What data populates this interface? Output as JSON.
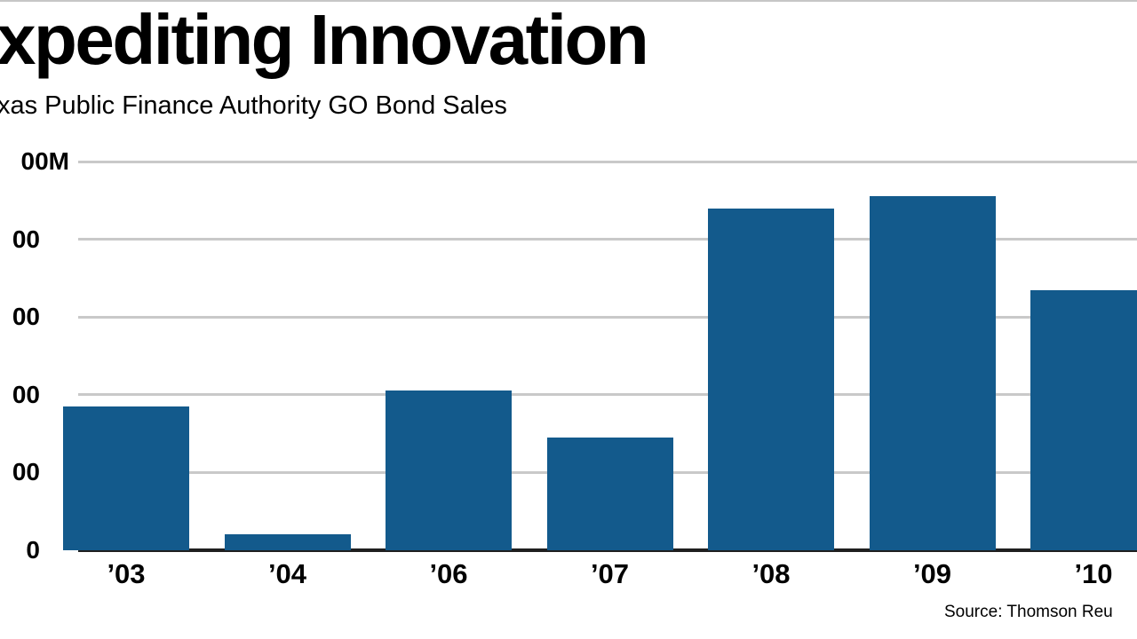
{
  "chart_data": {
    "type": "bar",
    "title": "xpediting Innovation",
    "subtitle": "xas Public Finance Authority GO Bond Sales",
    "categories": [
      "’03",
      "’04",
      "’06",
      "’07",
      "’08",
      "’09",
      "’10"
    ],
    "values": [
      185,
      20,
      205,
      145,
      440,
      455,
      335
    ],
    "ylim": [
      0,
      500
    ],
    "yticks": [
      {
        "value": 500,
        "label": "00M"
      },
      {
        "value": 400,
        "label": "00"
      },
      {
        "value": 300,
        "label": "00"
      },
      {
        "value": 200,
        "label": "00"
      },
      {
        "value": 100,
        "label": "00"
      },
      {
        "value": 0,
        "label": "0"
      }
    ],
    "grid": "horizontal",
    "legend": "none",
    "source": "Source: Thomson Reu",
    "colors": {
      "bar": "#135a8c",
      "gridline": "#c9c9c9",
      "baseline": "#1f1f1f",
      "text": "#000000",
      "background": "#ffffff"
    }
  }
}
